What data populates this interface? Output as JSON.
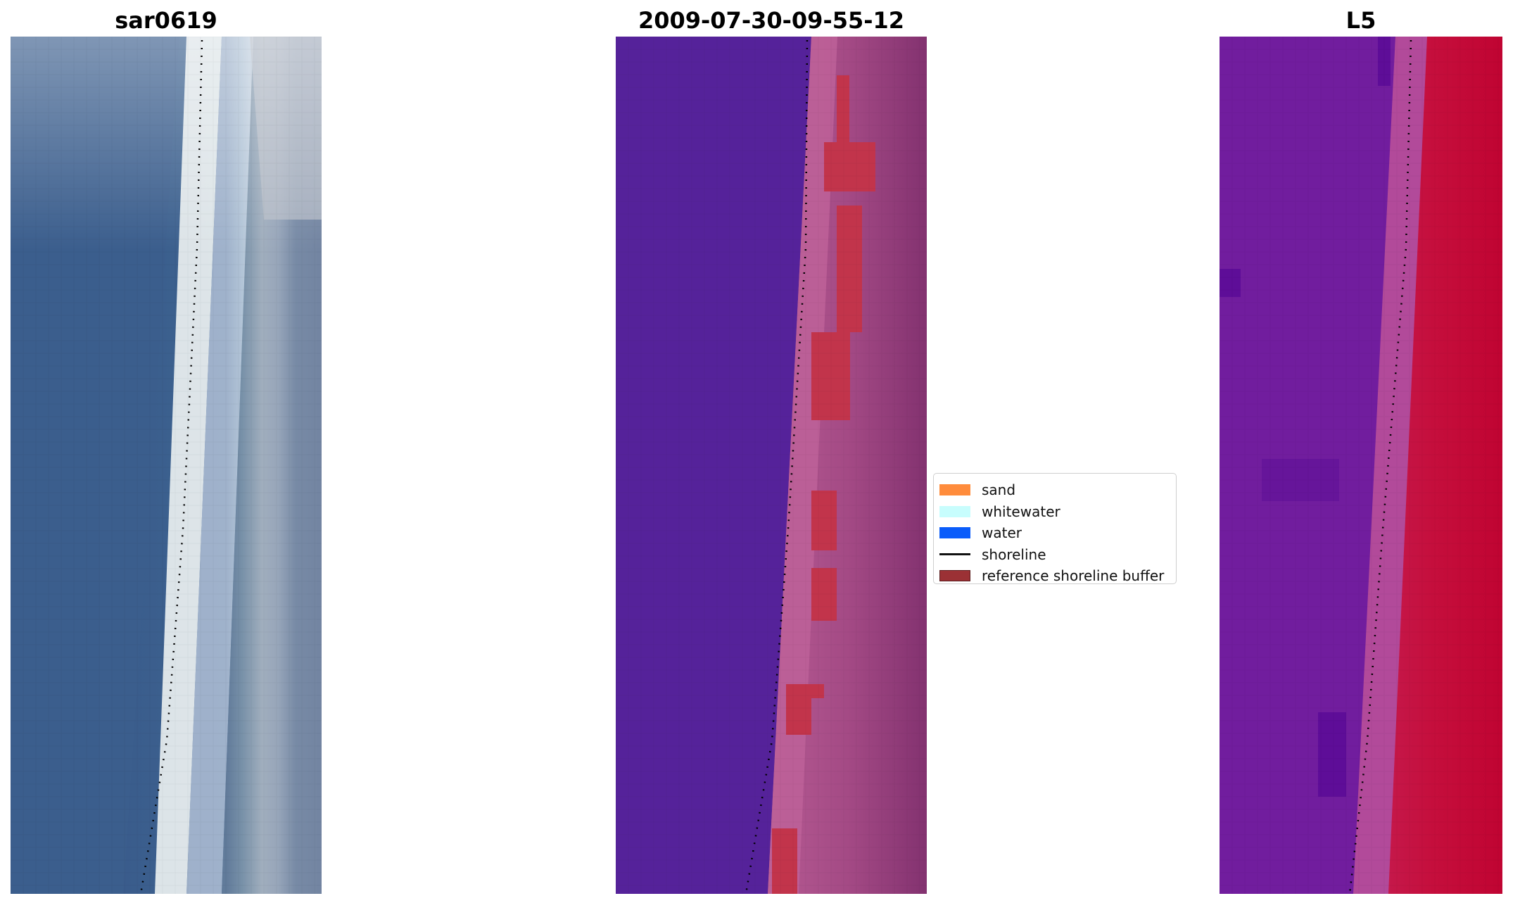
{
  "panels": [
    {
      "title": "sar0619"
    },
    {
      "title": "2009-07-30-09-55-12"
    },
    {
      "title": "L5"
    }
  ],
  "legend": {
    "items": [
      {
        "label": "sand",
        "kind": "patch",
        "color": "#ff8c3c"
      },
      {
        "label": "whitewater",
        "kind": "patch",
        "color": "#c8fdfd"
      },
      {
        "label": "water",
        "kind": "patch",
        "color": "#0a5cfa"
      },
      {
        "label": "shoreline",
        "kind": "line",
        "color": "#000000"
      },
      {
        "label": "reference shoreline buffer",
        "kind": "patch",
        "color": "#9b3135"
      }
    ]
  },
  "colors": {
    "rgb_water": "#3a5f8e",
    "rgb_whitewater": "#f3f7f5",
    "rgb_land": "#6a7ea2",
    "class_water": "#55229a",
    "class_land": "#8b3470",
    "class_sand": "#b95a94",
    "class_buffer": "#c2344b",
    "index_low": "#6f1a9c",
    "index_high": "#c30a35"
  }
}
